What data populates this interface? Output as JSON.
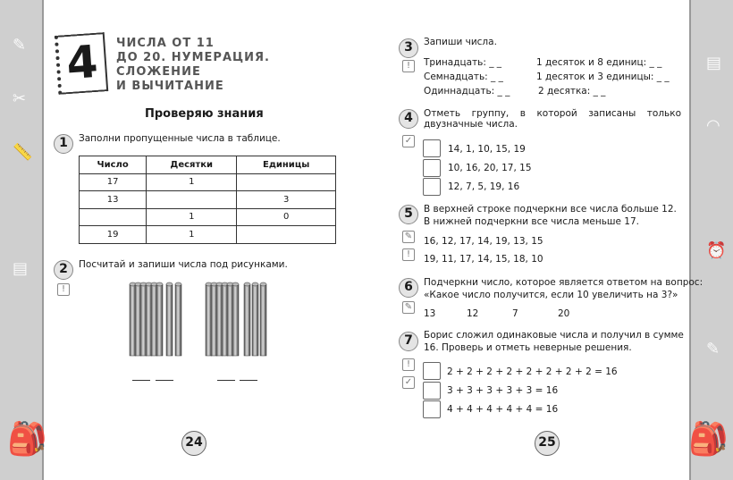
{
  "chapter": {
    "number": "4",
    "title_lines": [
      "ЧИСЛА ОТ 11",
      "ДО 20. НУМЕРАЦИЯ.",
      "СЛОЖЕНИЕ",
      "И ВЫЧИТАНИЕ"
    ]
  },
  "section_title": "Проверяю знания",
  "task1": {
    "num": "1",
    "text": "Заполни пропущенные числа в таблице.",
    "headers": [
      "Число",
      "Десятки",
      "Единицы"
    ],
    "rows": [
      [
        "17",
        "1",
        ""
      ],
      [
        "13",
        "",
        "3"
      ],
      [
        "",
        "1",
        "0"
      ],
      [
        "19",
        "1",
        ""
      ]
    ]
  },
  "task2": {
    "num": "2",
    "text": "Посчитай и запиши числа под рисунками.",
    "icon": "exclamation-icon"
  },
  "task3": {
    "num": "3",
    "text": "Запиши числа.",
    "items": [
      "Тринадцать: _ _",
      "Семнадцать: _ _",
      "Одиннадцать: _ _",
      "1 десяток и 8 единиц: _ _",
      "1 десяток и 3 единицы: _ _",
      "2 десятка: _ _"
    ]
  },
  "task4": {
    "num": "4",
    "text": "Отметь группу, в которой записаны только двузначные числа.",
    "options": [
      "14, 1, 10, 15, 19",
      "10, 16, 20, 17, 15",
      "12, 7, 5, 19, 16"
    ]
  },
  "task5": {
    "num": "5",
    "text1": "В верхней строке подчеркни все числа больше 12.",
    "text2": "В нижней подчеркни все числа меньше 17.",
    "row1": "16, 12, 17, 14, 19, 13, 15",
    "row2": "19, 11, 17, 14, 15, 18, 10"
  },
  "task6": {
    "num": "6",
    "text1": "Подчеркни число, которое является ответом на вопрос:",
    "text2": "«Какое число получится, если 10 увеличить на 3?»",
    "answers": [
      "13",
      "12",
      "7",
      "20"
    ]
  },
  "task7": {
    "num": "7",
    "text1": "Борис сложил одинаковые числа и получил в сумме",
    "text2": "16. Проверь и отметь неверные решения.",
    "options": [
      "2 + 2 + 2 + 2 + 2 + 2 + 2 + 2 = 16",
      "3 + 3 + 3 + 3 + 3 = 16",
      "4 + 4 + 4 + 4 + 4 = 16"
    ]
  },
  "page_numbers": {
    "left": "24",
    "right": "25"
  }
}
